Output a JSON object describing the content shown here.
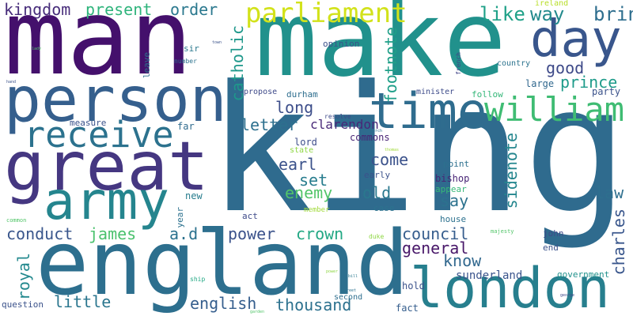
{
  "cloud": {
    "background": "#ffffff",
    "words": [
      {
        "text": "king",
        "color": "#2f6b8e"
      },
      {
        "text": "man",
        "color": "#44106c"
      },
      {
        "text": "make",
        "color": "#21918c"
      },
      {
        "text": "england",
        "color": "#2d6f8e"
      },
      {
        "text": "person",
        "color": "#355f8d"
      },
      {
        "text": "great",
        "color": "#453781"
      },
      {
        "text": "london",
        "color": "#277f8e"
      },
      {
        "text": "army",
        "color": "#25858e"
      },
      {
        "text": "time",
        "color": "#2f6c8e"
      },
      {
        "text": "day",
        "color": "#39568c"
      },
      {
        "text": "receive",
        "color": "#2c728e"
      },
      {
        "text": "william",
        "color": "#3fbc73"
      },
      {
        "text": "parliament",
        "color": "#d2e21b"
      },
      {
        "text": "kingdom",
        "color": "#472c7a"
      },
      {
        "text": "present",
        "color": "#2fb47c"
      },
      {
        "text": "order",
        "color": "#2a788e"
      },
      {
        "text": "catholic",
        "color": "#1f988b"
      },
      {
        "text": "like",
        "color": "#1fa188"
      },
      {
        "text": "way",
        "color": "#238a8d"
      },
      {
        "text": "bring",
        "color": "#2e6e8e"
      },
      {
        "text": "good",
        "color": "#3e4a89"
      },
      {
        "text": "prince",
        "color": "#1e9b8a"
      },
      {
        "text": "footnote",
        "color": "#1f9f88"
      },
      {
        "text": "long",
        "color": "#3d4e8a"
      },
      {
        "text": "letter",
        "color": "#2d708e"
      },
      {
        "text": "clarendon",
        "color": "#482878"
      },
      {
        "text": "earl",
        "color": "#3b528b"
      },
      {
        "text": "set",
        "color": "#287d8e"
      },
      {
        "text": "enemy",
        "color": "#52c569"
      },
      {
        "text": "come",
        "color": "#3b528b"
      },
      {
        "text": "old",
        "color": "#2a788e"
      },
      {
        "text": "say",
        "color": "#2c728e"
      },
      {
        "text": "sidenote",
        "color": "#24868e"
      },
      {
        "text": "law",
        "color": "#2e6f8e"
      },
      {
        "text": "charles",
        "color": "#39568c"
      },
      {
        "text": "council",
        "color": "#365d8d"
      },
      {
        "text": "general",
        "color": "#481769"
      },
      {
        "text": "know",
        "color": "#31688e"
      },
      {
        "text": "conduct",
        "color": "#39568c"
      },
      {
        "text": "james",
        "color": "#4ac16d"
      },
      {
        "text": "a.d",
        "color": "#2c728e"
      },
      {
        "text": "power",
        "color": "#3b528b"
      },
      {
        "text": "crown",
        "color": "#22a884"
      },
      {
        "text": "royal",
        "color": "#23898e"
      },
      {
        "text": "little",
        "color": "#2a768e"
      },
      {
        "text": "english",
        "color": "#355e8d"
      },
      {
        "text": "thousand",
        "color": "#2c718e"
      },
      {
        "text": "sunderland",
        "color": "#3a548c"
      },
      {
        "text": "commons",
        "color": "#482475"
      },
      {
        "text": "lord",
        "color": "#3d4d8a"
      },
      {
        "text": "bishop",
        "color": "#482576"
      },
      {
        "text": "point",
        "color": "#2d708e"
      },
      {
        "text": "appear",
        "color": "#37b878"
      },
      {
        "text": "large",
        "color": "#31688e"
      },
      {
        "text": "party",
        "color": "#3b528b"
      },
      {
        "text": "follow",
        "color": "#35b779"
      },
      {
        "text": "minister",
        "color": "#3e4c8a"
      },
      {
        "text": "durham",
        "color": "#2e6e8e"
      },
      {
        "text": "propose",
        "color": "#3e4a89"
      },
      {
        "text": "opinion",
        "color": "#3b528b"
      },
      {
        "text": "country",
        "color": "#2c738e"
      },
      {
        "text": "french",
        "color": "#414487"
      },
      {
        "text": "ireland",
        "color": "#b8de29"
      },
      {
        "text": "sir",
        "color": "#2a788e"
      },
      {
        "text": "leave",
        "color": "#2d708e"
      },
      {
        "text": "number",
        "color": "#2c728e"
      },
      {
        "text": "measure",
        "color": "#3b528b"
      },
      {
        "text": "far",
        "color": "#2f6b8e"
      },
      {
        "text": "new",
        "color": "#287d8e"
      },
      {
        "text": "year",
        "color": "#2c718e"
      },
      {
        "text": "act",
        "color": "#3e4a89"
      },
      {
        "text": "member",
        "color": "#a0da39"
      },
      {
        "text": "state",
        "color": "#8fd744"
      },
      {
        "text": "early",
        "color": "#3b528b"
      },
      {
        "text": "resolve",
        "color": "#3e4a89"
      },
      {
        "text": "case",
        "color": "#2c738e"
      },
      {
        "text": "house",
        "color": "#2c718e"
      },
      {
        "text": "hold",
        "color": "#3b528b"
      },
      {
        "text": "fact",
        "color": "#355e8d"
      },
      {
        "text": "second",
        "color": "#2e6e8e"
      },
      {
        "text": "question",
        "color": "#3b528b"
      },
      {
        "text": "ship",
        "color": "#22a884"
      },
      {
        "text": "duke",
        "color": "#8fd744"
      },
      {
        "text": "john",
        "color": "#3e4a89"
      },
      {
        "text": "end",
        "color": "#3b528b"
      },
      {
        "text": "majesty",
        "color": "#52c569"
      },
      {
        "text": "government",
        "color": "#21918c"
      },
      {
        "text": "common",
        "color": "#52c569"
      },
      {
        "text": "thomas",
        "color": "#a0da39"
      },
      {
        "text": "bill",
        "color": "#2a788e"
      },
      {
        "text": "town",
        "color": "#3b528b"
      },
      {
        "text": "church",
        "color": "#2c728e"
      },
      {
        "text": "lady",
        "color": "#52c569"
      },
      {
        "text": "george",
        "color": "#3e4a89"
      },
      {
        "text": "garden",
        "color": "#52c569"
      },
      {
        "text": "street",
        "color": "#2c728e"
      },
      {
        "text": "power",
        "color": "#8fd744"
      },
      {
        "text": "hand",
        "color": "#3b528b"
      }
    ]
  }
}
